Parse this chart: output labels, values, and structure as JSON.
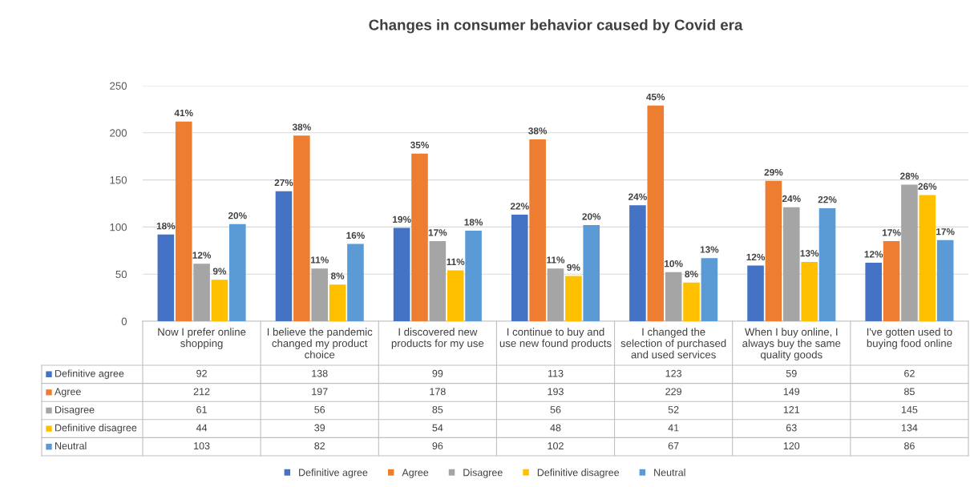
{
  "chart_data": {
    "type": "bar",
    "title": "Changes in consumer behavior caused by Covid era",
    "categories": [
      "Now I prefer online shopping",
      "I believe the pandemic changed my product choice",
      "I discovered new products for my use",
      "I continue to buy and use new found products",
      "I changed the selection of purchased and used services",
      "When I buy online, I always buy the same quality goods",
      "I've gotten used to buying food online"
    ],
    "series": [
      {
        "name": "Definitive agree",
        "color": "#4472c4",
        "values": [
          92,
          138,
          99,
          113,
          123,
          59,
          62
        ]
      },
      {
        "name": "Agree",
        "color": "#ed7d31",
        "values": [
          212,
          197,
          178,
          193,
          229,
          149,
          85
        ]
      },
      {
        "name": "Disagree",
        "color": "#a5a5a5",
        "values": [
          61,
          56,
          85,
          56,
          52,
          121,
          145
        ]
      },
      {
        "name": "Definitive disagree",
        "color": "#ffc000",
        "values": [
          44,
          39,
          54,
          48,
          41,
          63,
          134
        ]
      },
      {
        "name": "Neutral",
        "color": "#5b9bd5",
        "values": [
          103,
          82,
          96,
          102,
          67,
          120,
          86
        ]
      }
    ],
    "annotations": [
      "18%",
      "41%",
      "12%",
      "9%",
      "20%",
      "27%",
      "38%",
      "11%",
      "8%",
      "16%",
      "19%",
      "35%",
      "17%",
      "11%",
      "18%",
      "22%",
      "38%",
      "11%",
      "9%",
      "20%",
      "24%",
      "45%",
      "10%",
      "8%",
      "13%",
      "12%",
      "29%",
      "24%",
      "13%",
      "22%",
      "12%",
      "17%",
      "28%",
      "26%",
      "17%"
    ],
    "ylim": [
      0,
      250
    ],
    "yticks": [
      0,
      50,
      100,
      150,
      200,
      250
    ],
    "grid": "y",
    "legend": "bottom",
    "data_labels": true
  }
}
